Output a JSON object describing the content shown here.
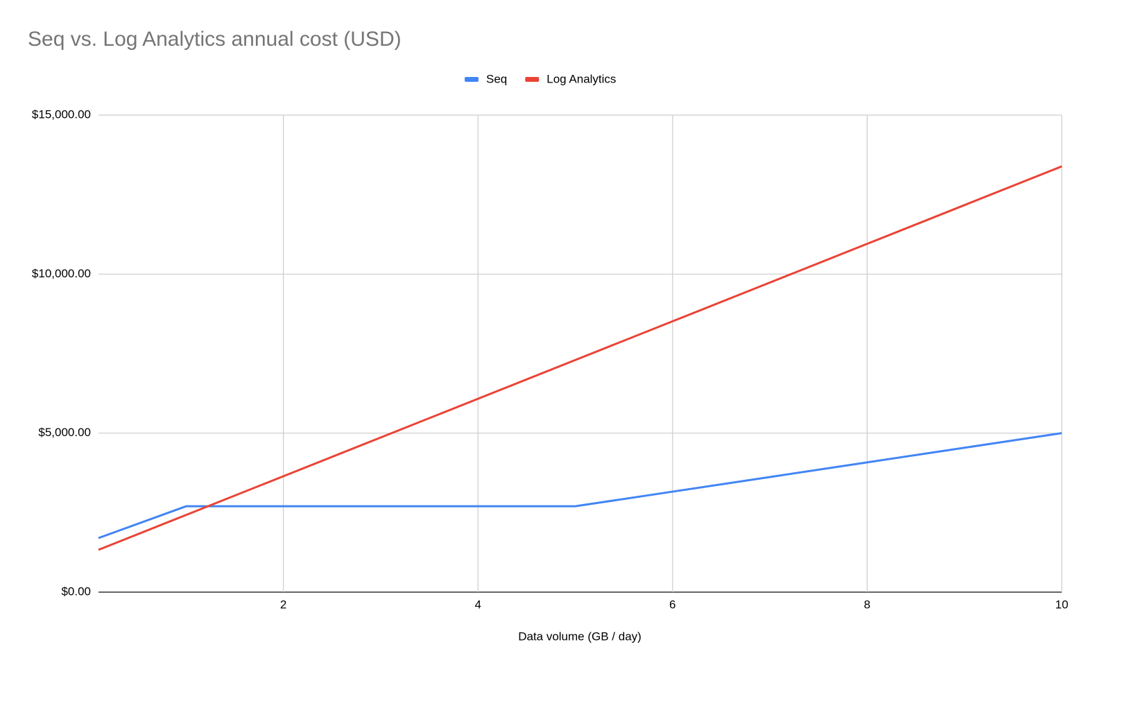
{
  "chart_data": {
    "type": "line",
    "title": "Seq vs. Log Analytics annual cost (USD)",
    "x_label": "Data volume (GB / day)",
    "x": [
      0.1,
      1,
      2,
      3,
      4,
      5,
      6,
      7,
      8,
      9,
      10
    ],
    "series": [
      {
        "name": "Seq",
        "color": "#4285f4",
        "values": [
          1700,
          2700,
          2700,
          2700,
          2700,
          2700,
          3160,
          3620,
          4080,
          4540,
          5000
        ]
      },
      {
        "name": "Log Analytics",
        "color": "#ea4335",
        "values": [
          1330,
          2426,
          3644,
          4862,
          6080,
          7298,
          8516,
          9734,
          10952,
          12170,
          13388
        ]
      }
    ],
    "xlim": [
      0.1,
      10
    ],
    "xticks": [
      2,
      4,
      6,
      8,
      10
    ],
    "ylim": [
      0,
      15000
    ],
    "yticks": [
      {
        "value": 0,
        "label": "$0.00"
      },
      {
        "value": 5000,
        "label": "$5,000.00"
      },
      {
        "value": 10000,
        "label": "$10,000.00"
      },
      {
        "value": 15000,
        "label": "$15,000.00"
      }
    ],
    "grid": true,
    "legend": "top"
  }
}
